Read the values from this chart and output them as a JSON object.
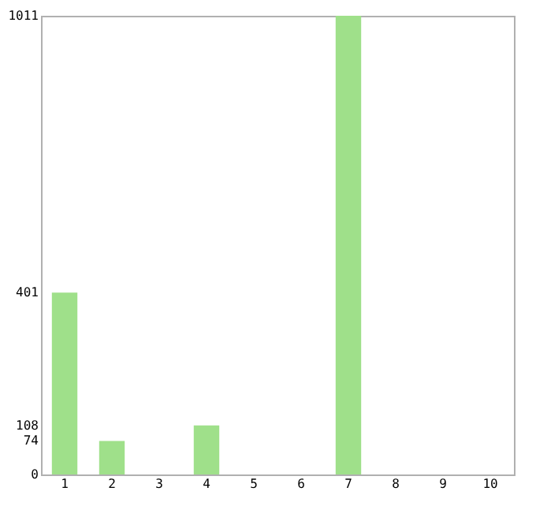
{
  "chart_data": {
    "type": "bar",
    "categories": [
      "1",
      "2",
      "3",
      "4",
      "5",
      "6",
      "7",
      "8",
      "9",
      "10"
    ],
    "values": [
      401,
      74,
      0,
      108,
      0,
      0,
      1011,
      0,
      0,
      0
    ],
    "color": "#9fe08a",
    "ylim": [
      0,
      1011
    ],
    "yticks": [
      0,
      74,
      108,
      401,
      1011
    ]
  }
}
